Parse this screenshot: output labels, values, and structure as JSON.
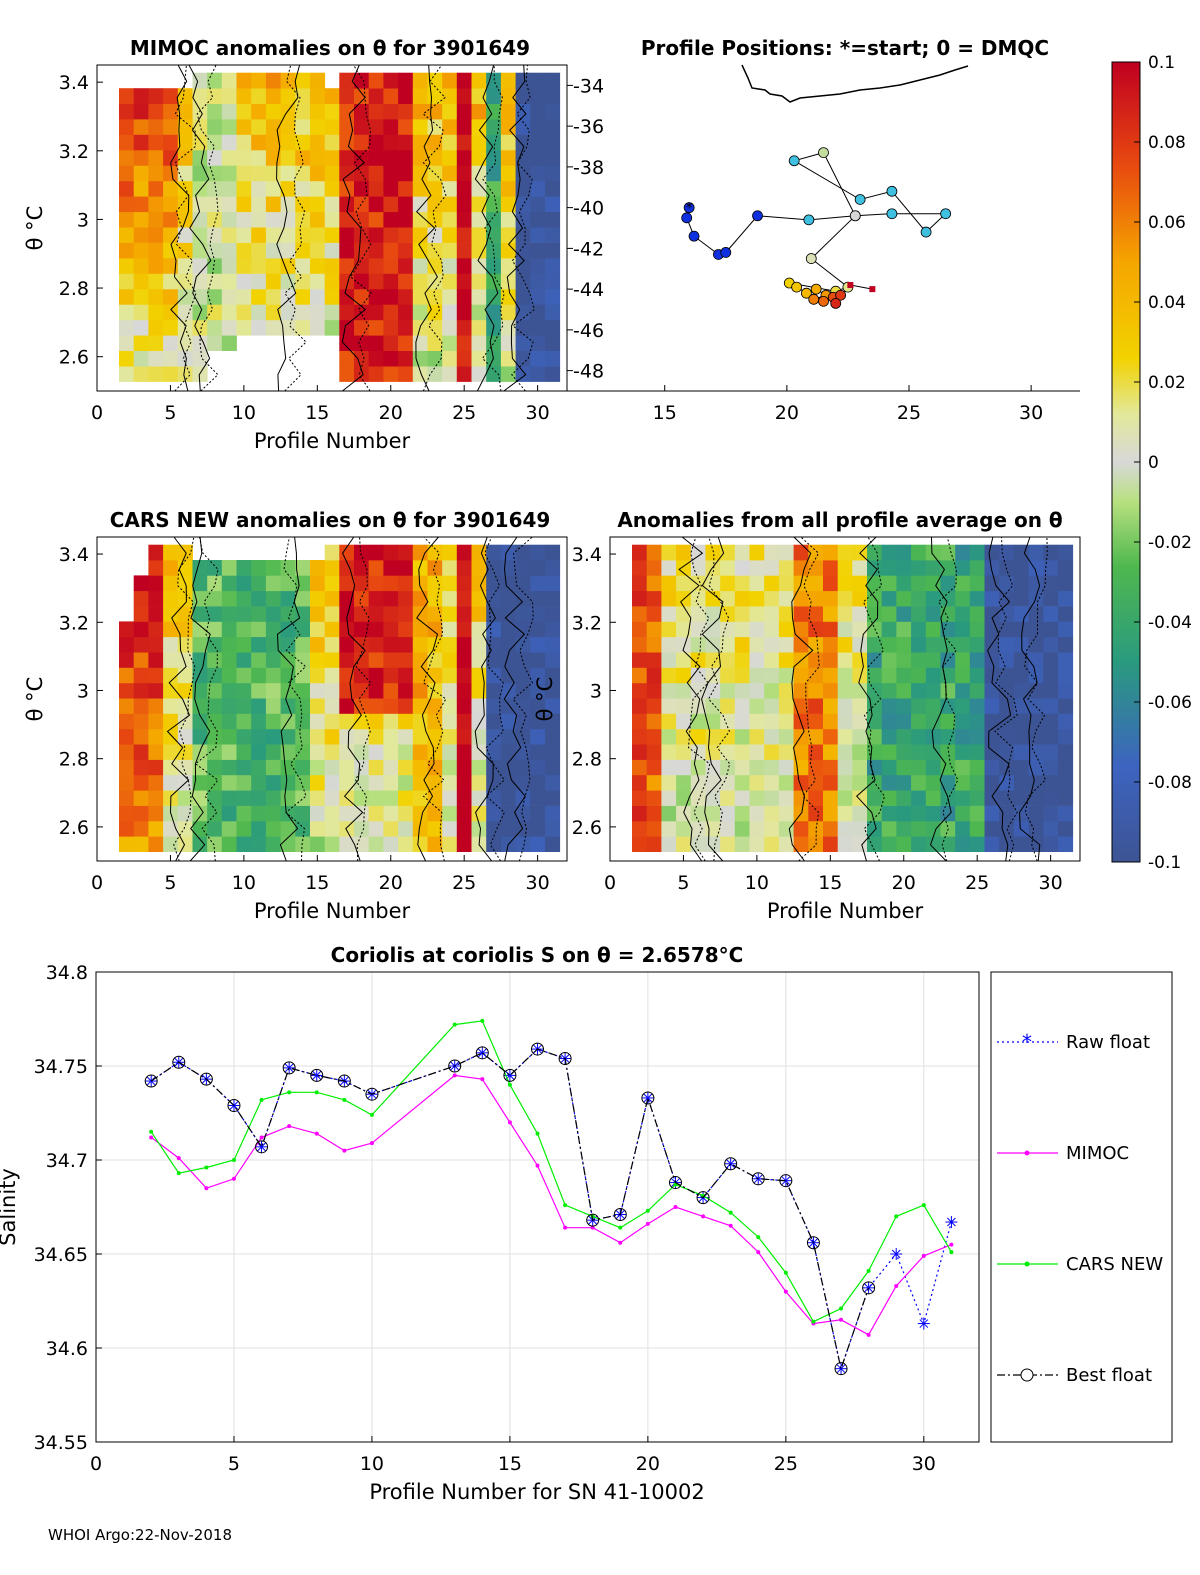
{
  "footer": "WHOI Argo:22-Nov-2018",
  "colorbar": {
    "ticks": [
      "0.1",
      "0.08",
      "0.06",
      "0.04",
      "0.02",
      "0",
      "-0.02",
      "-0.04",
      "-0.06",
      "-0.08",
      "-0.1"
    ],
    "range": [
      -0.1,
      0.1
    ]
  },
  "chart_data": [
    {
      "type": "heatmap",
      "id": "mimoc",
      "title": "MIMOC anomalies on θ  for 3901649",
      "xlabel": "Profile Number",
      "ylabel": "θ °C",
      "xlim": [
        0,
        32
      ],
      "ylim": [
        2.5,
        3.45
      ],
      "xticks": [
        "0",
        "5",
        "10",
        "15",
        "20",
        "25",
        "30"
      ],
      "yticks": [
        "2.6",
        "2.8",
        "3",
        "3.2",
        "3.4"
      ],
      "cmin": -0.1,
      "cmax": 0.1
    },
    {
      "type": "scatter",
      "id": "positions",
      "title": "Profile Positions: *=start; 0 = DMQC",
      "xlim": [
        11,
        32
      ],
      "ylim": [
        -49,
        -33
      ],
      "xticks": [
        "15",
        "20",
        "25",
        "30"
      ],
      "yticks": [
        "-34",
        "-36",
        "-38",
        "-40",
        "-42",
        "-44",
        "-46",
        "-48"
      ],
      "track": [
        {
          "lon": 16.0,
          "lat": -40.0,
          "start": true
        },
        {
          "lon": 15.9,
          "lat": -40.5
        },
        {
          "lon": 16.2,
          "lat": -41.4
        },
        {
          "lon": 17.2,
          "lat": -42.3
        },
        {
          "lon": 17.5,
          "lat": -42.2
        },
        {
          "lon": 18.8,
          "lat": -40.4
        },
        {
          "lon": 20.9,
          "lat": -40.6
        },
        {
          "lon": 22.8,
          "lat": -40.4
        },
        {
          "lon": 24.3,
          "lat": -40.3
        },
        {
          "lon": 26.5,
          "lat": -40.3
        },
        {
          "lon": 25.7,
          "lat": -41.2
        },
        {
          "lon": 24.3,
          "lat": -39.2
        },
        {
          "lon": 23.0,
          "lat": -39.6
        },
        {
          "lon": 20.3,
          "lat": -37.7
        },
        {
          "lon": 21.5,
          "lat": -37.3
        },
        {
          "lon": 22.8,
          "lat": -40.4
        },
        {
          "lon": 21.0,
          "lat": -42.5
        },
        {
          "lon": 22.5,
          "lat": -43.9
        },
        {
          "lon": 22.0,
          "lat": -44.1
        },
        {
          "lon": 20.1,
          "lat": -43.7
        },
        {
          "lon": 20.4,
          "lat": -43.9
        },
        {
          "lon": 20.8,
          "lat": -44.2
        },
        {
          "lon": 21.2,
          "lat": -44.0
        },
        {
          "lon": 21.6,
          "lat": -44.3
        },
        {
          "lon": 21.1,
          "lat": -44.5
        },
        {
          "lon": 21.5,
          "lat": -44.6
        },
        {
          "lon": 21.9,
          "lat": -44.4
        },
        {
          "lon": 22.2,
          "lat": -44.3
        },
        {
          "lon": 22.0,
          "lat": -44.7
        },
        {
          "lon": 22.6,
          "lat": -43.8
        },
        {
          "lon": 23.5,
          "lat": -44.0
        }
      ]
    },
    {
      "type": "heatmap",
      "id": "cars",
      "title": "CARS NEW anomalies on θ for 3901649",
      "xlabel": "Profile Number",
      "ylabel": "θ °C",
      "xlim": [
        0,
        32
      ],
      "ylim": [
        2.5,
        3.45
      ],
      "xticks": [
        "0",
        "5",
        "10",
        "15",
        "20",
        "25",
        "30"
      ],
      "yticks": [
        "2.6",
        "2.8",
        "3",
        "3.2",
        "3.4"
      ],
      "cmin": -0.1,
      "cmax": 0.1
    },
    {
      "type": "heatmap",
      "id": "allavg",
      "title": "Anomalies from all profile average on θ",
      "xlabel": "Profile Number",
      "ylabel": "θ °C",
      "xlim": [
        0,
        32
      ],
      "ylim": [
        2.5,
        3.45
      ],
      "xticks": [
        "0",
        "5",
        "10",
        "15",
        "20",
        "25",
        "30"
      ],
      "yticks": [
        "2.6",
        "2.8",
        "3",
        "3.2",
        "3.4"
      ],
      "cmin": -0.1,
      "cmax": 0.1
    },
    {
      "type": "line",
      "id": "salinity",
      "title": "Coriolis at coriolis S on θ = 2.6578°C",
      "xlabel": "Profile Number for SN 41-10002",
      "ylabel": "Salinity",
      "xlim": [
        0,
        32
      ],
      "ylim": [
        34.55,
        34.8
      ],
      "xticks": [
        "0",
        "5",
        "10",
        "15",
        "20",
        "25",
        "30"
      ],
      "yticks": [
        "34.55",
        "34.6",
        "34.65",
        "34.7",
        "34.75",
        "34.8"
      ],
      "legend": [
        "Raw float",
        "MIMOC",
        "CARS NEW",
        "Best float"
      ],
      "series": [
        {
          "name": "Raw float",
          "color": "#0000ff",
          "x": [
            2,
            3,
            4,
            5,
            6,
            7,
            8,
            9,
            10,
            13,
            14,
            15,
            16,
            17,
            18,
            19,
            20,
            21,
            22,
            23,
            24,
            25,
            26,
            27,
            28,
            29,
            30,
            31
          ],
          "values": [
            34.742,
            34.752,
            34.743,
            34.729,
            34.707,
            34.749,
            34.745,
            34.742,
            34.735,
            34.75,
            34.757,
            34.745,
            34.759,
            34.754,
            34.668,
            34.671,
            34.733,
            34.688,
            34.68,
            34.698,
            34.69,
            34.689,
            34.656,
            34.589,
            34.632,
            34.65,
            34.613,
            34.667
          ]
        },
        {
          "name": "MIMOC",
          "color": "#ff00ff",
          "x": [
            2,
            3,
            4,
            5,
            6,
            7,
            8,
            9,
            10,
            13,
            14,
            15,
            16,
            17,
            18,
            19,
            20,
            21,
            22,
            23,
            24,
            25,
            26,
            27,
            28,
            29,
            30,
            31
          ],
          "values": [
            34.712,
            34.701,
            34.685,
            34.69,
            34.712,
            34.718,
            34.714,
            34.705,
            34.709,
            34.745,
            34.743,
            34.72,
            34.697,
            34.664,
            34.664,
            34.656,
            34.666,
            34.675,
            34.67,
            34.665,
            34.651,
            34.63,
            34.613,
            34.615,
            34.607,
            34.633,
            34.649,
            34.655
          ]
        },
        {
          "name": "CARS NEW",
          "color": "#00ee00",
          "x": [
            2,
            3,
            4,
            5,
            6,
            7,
            8,
            9,
            10,
            13,
            14,
            15,
            16,
            17,
            18,
            19,
            20,
            21,
            22,
            23,
            24,
            25,
            26,
            27,
            28,
            29,
            30,
            31
          ],
          "values": [
            34.715,
            34.693,
            34.696,
            34.7,
            34.732,
            34.736,
            34.736,
            34.732,
            34.724,
            34.772,
            34.774,
            34.74,
            34.714,
            34.676,
            34.67,
            34.664,
            34.673,
            34.687,
            34.681,
            34.672,
            34.659,
            34.64,
            34.614,
            34.621,
            34.641,
            34.67,
            34.676,
            34.651
          ]
        },
        {
          "name": "Best float",
          "color": "#000000",
          "x": [
            2,
            3,
            4,
            5,
            6,
            7,
            8,
            9,
            10,
            13,
            14,
            15,
            16,
            17,
            18,
            19,
            20,
            21,
            22,
            23,
            24,
            25,
            26,
            27,
            28
          ],
          "values": [
            34.742,
            34.752,
            34.743,
            34.729,
            34.707,
            34.749,
            34.745,
            34.742,
            34.735,
            34.75,
            34.757,
            34.745,
            34.759,
            34.754,
            34.668,
            34.671,
            34.733,
            34.688,
            34.68,
            34.698,
            34.69,
            34.689,
            34.656,
            34.589,
            34.632
          ]
        }
      ]
    }
  ]
}
